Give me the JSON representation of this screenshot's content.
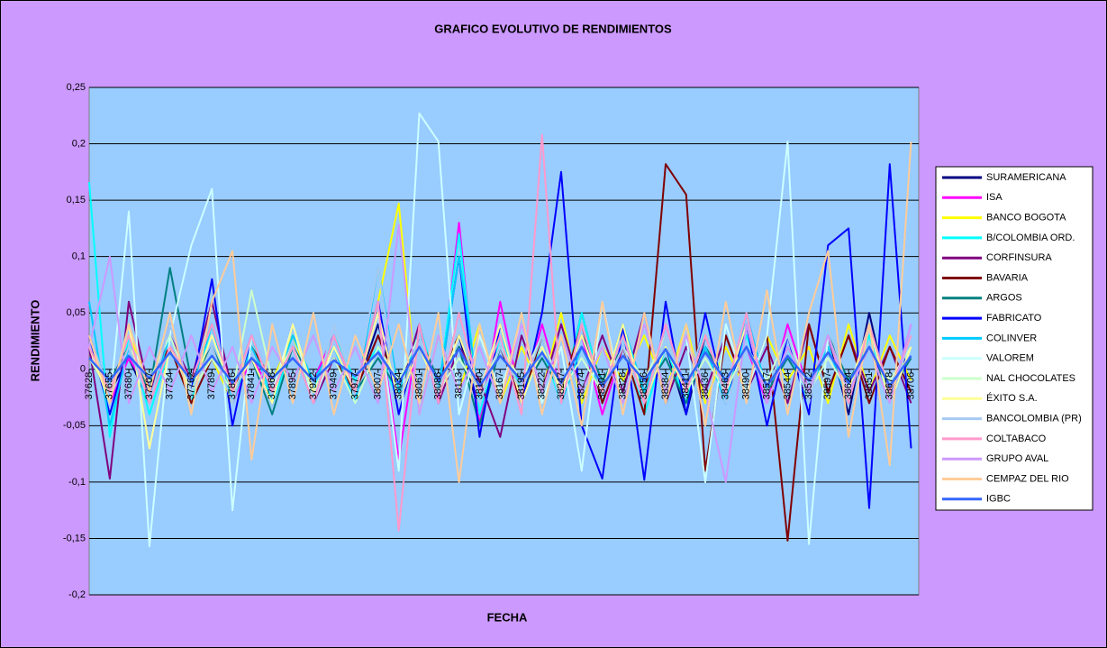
{
  "chart_data": {
    "type": "line",
    "title": "GRAFICO EVOLUTIVO DE RENDIMIENTOS",
    "x_label": "FECHA",
    "y_label": "RENDIMIENTO",
    "grid": true,
    "legend": "right",
    "xlim": [
      37628,
      38716
    ],
    "xticks": [
      37628,
      37655,
      37680,
      37707,
      37734,
      37762,
      37789,
      37816,
      37841,
      37868,
      37895,
      37922,
      37949,
      37977,
      38007,
      38034,
      38061,
      38086,
      38113,
      38140,
      38167,
      38195,
      38222,
      38247,
      38274,
      38301,
      38328,
      38356,
      38384,
      38411,
      38436,
      38463,
      38490,
      38517,
      38544,
      38572,
      38597,
      38624,
      38651,
      38678,
      38706
    ],
    "ylim": [
      -0.2,
      0.25
    ],
    "yticks": [
      {
        "value": -0.2,
        "label": "-0,2"
      },
      {
        "value": -0.15,
        "label": "-0,15"
      },
      {
        "value": -0.1,
        "label": "-0,1"
      },
      {
        "value": -0.05,
        "label": "-0,05"
      },
      0,
      {
        "value": 0.05,
        "label": "0,05"
      },
      {
        "value": 0.1,
        "label": "0,1"
      },
      {
        "value": 0.15,
        "label": "0,15"
      },
      {
        "value": 0.2,
        "label": "0,2"
      },
      {
        "value": 0.25,
        "label": "0,25"
      }
    ],
    "x": [
      37628,
      37655,
      37680,
      37707,
      37734,
      37762,
      37789,
      37816,
      37841,
      37868,
      37895,
      37922,
      37949,
      37977,
      38007,
      38034,
      38061,
      38086,
      38113,
      38140,
      38167,
      38195,
      38222,
      38247,
      38274,
      38301,
      38328,
      38356,
      38384,
      38411,
      38436,
      38463,
      38490,
      38517,
      38544,
      38572,
      38597,
      38624,
      38651,
      38678,
      38706
    ],
    "series": [
      {
        "name": "SURAMERICANA",
        "color": "#000080",
        "values": [
          0.03,
          -0.02,
          0.01,
          -0.03,
          0.02,
          -0.01,
          0.04,
          -0.02,
          0.01,
          -0.03,
          0.02,
          -0.01,
          0.03,
          -0.02,
          0.04,
          -0.03,
          0.02,
          -0.01,
          0.03,
          -0.04,
          0.02,
          -0.02,
          0.03,
          -0.03,
          0.05,
          -0.02,
          0.04,
          -0.03,
          0.02,
          -0.04,
          0.03,
          -0.02,
          0.04,
          -0.03,
          0.02,
          -0.02,
          0.03,
          -0.04,
          0.05,
          -0.03,
          0.02
        ]
      },
      {
        "name": "ISA",
        "color": "#ff00ff",
        "values": [
          0.02,
          -0.03,
          0.01,
          -0.02,
          0.03,
          -0.01,
          0.02,
          -0.03,
          0.01,
          -0.02,
          0.02,
          -0.01,
          0.03,
          -0.02,
          0.05,
          -0.08,
          0.04,
          -0.03,
          0.13,
          -0.05,
          0.06,
          -0.03,
          0.04,
          -0.02,
          0.03,
          -0.04,
          0.02,
          -0.03,
          0.04,
          -0.02,
          0.03,
          -0.02,
          0.02,
          -0.03,
          0.04,
          -0.02,
          0.03,
          -0.02,
          0.02,
          -0.03,
          0.04
        ]
      },
      {
        "name": "BANCO BOGOTA",
        "color": "#ffff00",
        "values": [
          0.01,
          -0.02,
          0.03,
          -0.01,
          0.02,
          -0.02,
          0.01,
          -0.03,
          0.02,
          -0.01,
          0.03,
          -0.02,
          0.01,
          -0.02,
          0.06,
          0.147,
          -0.04,
          0.03,
          -0.02,
          0.04,
          -0.03,
          0.02,
          -0.02,
          0.05,
          -0.03,
          0.02,
          -0.01,
          0.03,
          -0.02,
          0.04,
          -0.03,
          0.02,
          -0.02,
          0.03,
          -0.01,
          0.02,
          -0.03,
          0.04,
          -0.02,
          0.03,
          -0.01
        ]
      },
      {
        "name": "B/COLOMBIA ORD.",
        "color": "#00ffff",
        "values": [
          0.166,
          -0.06,
          0.03,
          -0.04,
          0.02,
          -0.03,
          0.04,
          -0.02,
          0.03,
          -0.03,
          0.02,
          -0.02,
          0.03,
          -0.01,
          0.02,
          -0.03,
          0.04,
          -0.02,
          0.12,
          -0.04,
          0.03,
          -0.02,
          0.02,
          -0.03,
          0.05,
          -0.02,
          0.03,
          -0.04,
          0.02,
          -0.03,
          0.04,
          -0.02,
          0.03,
          -0.02,
          0.02,
          -0.03,
          0.04,
          -0.02,
          0.03,
          -0.03,
          0.02
        ]
      },
      {
        "name": "CORFINSURA",
        "color": "#800080",
        "values": [
          0.02,
          -0.097,
          0.06,
          -0.02,
          0.03,
          -0.01,
          0.06,
          -0.02,
          0.03,
          -0.02,
          0.02,
          -0.03,
          0.01,
          -0.02,
          0.03,
          -0.02,
          0.04,
          -0.03,
          0.02,
          -0.01,
          -0.06,
          0.03,
          -0.02,
          0.04,
          -0.02,
          0.03,
          -0.02,
          0.05,
          -0.03,
          0.02,
          -0.02,
          0.03,
          -0.02,
          0.02,
          -0.03,
          0.04,
          -0.02,
          0.03,
          -0.02,
          0.02,
          -0.03
        ]
      },
      {
        "name": "BAVARIA",
        "color": "#800000",
        "values": [
          0.01,
          -0.02,
          0.02,
          -0.01,
          0.02,
          -0.03,
          0.01,
          -0.02,
          0.02,
          -0.01,
          0.02,
          -0.02,
          0.01,
          -0.02,
          0.03,
          -0.02,
          0.02,
          -0.01,
          0.03,
          -0.02,
          0.02,
          -0.03,
          0.03,
          -0.02,
          0.04,
          -0.03,
          0.02,
          -0.04,
          0.182,
          0.155,
          -0.09,
          0.03,
          -0.02,
          0.03,
          -0.152,
          0.04,
          -0.02,
          0.03,
          -0.03,
          0.02,
          -0.02
        ]
      },
      {
        "name": "ARGOS",
        "color": "#008080",
        "values": [
          0.01,
          -0.01,
          0.02,
          -0.02,
          0.09,
          -0.01,
          0.02,
          -0.02,
          0.01,
          -0.04,
          0.02,
          -0.01,
          0.02,
          -0.02,
          0.01,
          -0.02,
          0.03,
          -0.01,
          0.02,
          -0.05,
          0.02,
          -0.02,
          0.01,
          -0.02,
          0.03,
          -0.01,
          0.02,
          -0.02,
          0.01,
          -0.03,
          0.02,
          -0.01,
          0.02,
          -0.02,
          0.01,
          -0.02,
          0.03,
          -0.01,
          0.02,
          -0.02,
          0.01
        ]
      },
      {
        "name": "FABRICATO",
        "color": "#0000ff",
        "values": [
          0.03,
          -0.04,
          0.02,
          -0.03,
          0.04,
          -0.02,
          0.08,
          -0.05,
          0.03,
          -0.02,
          0.04,
          -0.03,
          0.02,
          -0.02,
          0.06,
          -0.04,
          0.03,
          -0.02,
          0.1,
          -0.06,
          0.04,
          -0.03,
          0.05,
          0.175,
          -0.05,
          -0.097,
          0.04,
          -0.098,
          0.06,
          -0.04,
          0.05,
          -0.03,
          0.04,
          -0.05,
          0.03,
          -0.04,
          0.11,
          0.125,
          -0.123,
          0.182,
          -0.07
        ]
      },
      {
        "name": "COLINVER",
        "color": "#00ccff",
        "values": [
          0.06,
          -0.05,
          0.02,
          -0.03,
          0.03,
          -0.02,
          0.04,
          -0.03,
          0.02,
          -0.02,
          0.03,
          -0.01,
          0.02,
          -0.03,
          0.09,
          -0.02,
          0.03,
          -0.02,
          0.1,
          -0.03,
          0.02,
          -0.02,
          0.03,
          -0.03,
          0.02,
          -0.02,
          0.04,
          -0.02,
          0.03,
          -0.02,
          0.02,
          -0.03,
          0.05,
          -0.02,
          0.03,
          -0.02,
          0.02,
          -0.03,
          0.04,
          -0.02,
          0.03
        ]
      },
      {
        "name": "VALOREM",
        "color": "#ccffff",
        "values": [
          0.02,
          -0.03,
          0.14,
          -0.157,
          0.03,
          0.11,
          0.16,
          -0.125,
          0.03,
          -0.02,
          0.04,
          -0.03,
          0.02,
          -0.02,
          0.05,
          -0.09,
          0.227,
          0.202,
          -0.04,
          0.03,
          -0.02,
          0.04,
          -0.03,
          0.02,
          -0.09,
          0.06,
          -0.03,
          0.04,
          -0.02,
          0.03,
          -0.1,
          0.04,
          -0.02,
          0.03,
          0.202,
          -0.155,
          0.03,
          -0.02,
          0.04,
          -0.03,
          0.02
        ]
      },
      {
        "name": "NAL CHOCOLATES",
        "color": "#ccffcc",
        "values": [
          0.01,
          -0.02,
          0.02,
          -0.01,
          0.03,
          -0.02,
          0.01,
          -0.02,
          0.07,
          -0.01,
          0.02,
          -0.02,
          0.01,
          -0.03,
          0.02,
          -0.01,
          0.03,
          -0.02,
          0.01,
          -0.02,
          0.02,
          -0.01,
          0.03,
          -0.02,
          0.01,
          -0.02,
          0.02,
          -0.01,
          0.03,
          -0.02,
          0.01,
          -0.02,
          0.02,
          -0.01,
          0.03,
          -0.02,
          0.01,
          -0.02,
          0.02,
          -0.01,
          0.02
        ]
      },
      {
        "name": "ÉXITO S.A.",
        "color": "#ffff99",
        "values": [
          0.02,
          -0.03,
          0.04,
          -0.07,
          0.02,
          -0.02,
          0.03,
          -0.02,
          0.01,
          -0.03,
          0.04,
          -0.02,
          0.02,
          -0.02,
          0.05,
          -0.03,
          0.02,
          -0.02,
          0.03,
          -0.02,
          0.04,
          -0.03,
          0.02,
          -0.02,
          0.03,
          -0.02,
          0.04,
          -0.03,
          0.02,
          -0.02,
          0.03,
          -0.02,
          0.04,
          -0.03,
          0.02,
          -0.02,
          0.03,
          -0.02,
          0.04,
          -0.03,
          0.02
        ]
      },
      {
        "name": "BANCOLOMBIA (PR)",
        "color": "#a6caf0",
        "values": [
          0.03,
          -0.02,
          0.02,
          -0.03,
          0.04,
          -0.02,
          0.02,
          -0.03,
          0.03,
          -0.02,
          0.02,
          -0.03,
          0.04,
          -0.02,
          0.09,
          -0.03,
          0.03,
          -0.02,
          0.04,
          -0.03,
          0.02,
          -0.02,
          0.03,
          -0.03,
          0.04,
          -0.02,
          0.02,
          -0.03,
          0.03,
          -0.02,
          0.04,
          -0.03,
          0.02,
          -0.02,
          0.03,
          -0.03,
          0.04,
          -0.02,
          0.02,
          -0.03,
          0.03
        ]
      },
      {
        "name": "COLTABACO",
        "color": "#ff99cc",
        "values": [
          0.02,
          -0.02,
          0.03,
          -0.03,
          0.02,
          -0.01,
          0.04,
          -0.02,
          0.03,
          -0.02,
          0.02,
          -0.03,
          0.03,
          -0.02,
          0.06,
          -0.143,
          0.04,
          -0.03,
          0.05,
          -0.02,
          0.03,
          -0.04,
          0.208,
          -0.03,
          0.04,
          -0.02,
          0.03,
          -0.03,
          0.04,
          -0.02,
          0.03,
          -0.02,
          0.05,
          -0.03,
          0.02,
          -0.02,
          0.03,
          -0.03,
          0.04,
          -0.02,
          0.03
        ]
      },
      {
        "name": "GRUPO AVAL",
        "color": "#cc99ff",
        "values": [
          0.02,
          0.1,
          -0.03,
          0.02,
          -0.02,
          0.03,
          -0.02,
          0.02,
          -0.03,
          0.02,
          -0.01,
          0.03,
          -0.02,
          0.02,
          -0.03,
          0.128,
          -0.04,
          0.03,
          -0.02,
          0.02,
          -0.03,
          0.04,
          -0.02,
          0.03,
          -0.02,
          0.02,
          -0.03,
          0.04,
          -0.02,
          0.03,
          -0.02,
          -0.1,
          0.04,
          -0.03,
          0.02,
          -0.02,
          0.03,
          -0.02,
          0.02,
          -0.03,
          0.04
        ]
      },
      {
        "name": "CEMPAZ DEL RIO",
        "color": "#ffcc99",
        "values": [
          0.03,
          -0.03,
          0.04,
          -0.02,
          0.05,
          -0.04,
          0.06,
          0.105,
          -0.08,
          0.04,
          -0.03,
          0.05,
          -0.04,
          0.03,
          -0.02,
          0.04,
          -0.03,
          0.05,
          -0.1,
          0.04,
          -0.03,
          0.05,
          -0.04,
          0.03,
          -0.05,
          0.06,
          -0.04,
          0.05,
          -0.03,
          0.04,
          -0.05,
          0.06,
          -0.03,
          0.07,
          -0.04,
          0.05,
          0.105,
          -0.06,
          0.04,
          -0.085,
          0.202
        ]
      },
      {
        "name": "IGBC",
        "color": "#3366ff",
        "values": [
          0.01,
          -0.01,
          0.012,
          -0.008,
          0.015,
          -0.01,
          0.012,
          -0.012,
          0.01,
          -0.008,
          0.01,
          -0.01,
          0.008,
          -0.006,
          0.015,
          -0.012,
          0.02,
          -0.01,
          0.018,
          -0.015,
          0.012,
          -0.01,
          0.015,
          -0.012,
          0.02,
          -0.015,
          0.012,
          -0.01,
          0.018,
          -0.012,
          0.015,
          -0.01,
          0.02,
          -0.015,
          0.012,
          -0.01,
          0.015,
          -0.012,
          0.02,
          -0.015,
          0.012
        ]
      }
    ]
  }
}
